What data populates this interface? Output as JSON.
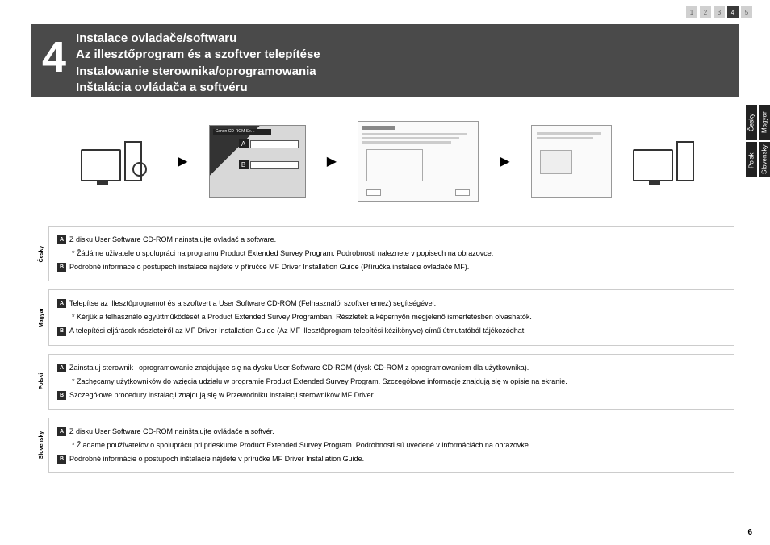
{
  "nav": {
    "steps": [
      "1",
      "2",
      "3",
      "4",
      "5"
    ],
    "active_index": 3
  },
  "header": {
    "step_number": "4",
    "titles": [
      "Instalace ovladače/softwaru",
      "Az illesztőprogram és a szoftver telepítése",
      "Instalowanie sterownika/oprogramowania",
      "Inštalácia ovládača a softvéru"
    ]
  },
  "side_tabs": {
    "col1": [
      "Česky",
      "Polski"
    ],
    "col2": [
      "Magyar",
      "Slovensky"
    ]
  },
  "diagram": {
    "markA": "A",
    "markB": "B",
    "cdrom_brand": "Canon   CD-ROM Se…"
  },
  "sections": [
    {
      "lang": "Česky",
      "lineA": "Z disku User Software CD-ROM nainstalujte ovladač a software.",
      "note": "* Žádáme uživatele o spolupráci na programu Product Extended Survey Program. Podrobnosti naleznete v popisech na obrazovce.",
      "lineB": "Podrobné informace o postupech instalace najdete v příručce MF Driver Installation Guide (Příručka instalace ovladače MF)."
    },
    {
      "lang": "Magyar",
      "lineA": "Telepítse az illesztőprogramot és a szoftvert a User Software CD-ROM (Felhasználói szoftverlemez) segítségével.",
      "note": "* Kérjük a felhasználó együttműködését a Product Extended Survey Programban. Részletek a képernyőn megjelenő ismertetésben olvashatók.",
      "lineB": "A telepítési eljárások részleteiről az MF Driver Installation Guide (Az MF illesztőprogram telepítési kézikönyve) című útmutatóból tájékozódhat."
    },
    {
      "lang": "Polski",
      "lineA": "Zainstaluj sterownik i oprogramowanie znajdujące się na dysku User Software CD-ROM (dysk CD-ROM z oprogramowaniem dla użytkownika).",
      "note": "* Zachęcamy użytkowników do wzięcia udziału w programie Product Extended Survey Program. Szczegółowe informacje znajdują się w opisie na ekranie.",
      "lineB": "Szczegółowe procedury instalacji znajdują się w Przewodniku instalacji sterowników MF Driver."
    },
    {
      "lang": "Slovensky",
      "lineA": "Z disku User Software CD-ROM nainštalujte ovládače a softvér.",
      "note": "* Žiadame používateľov o spoluprácu pri prieskume Product Extended Survey Program. Podrobnosti sú uvedené v informáciách na obrazovke.",
      "lineB": "Podrobné informácie o postupoch inštalácie nájdete v príručke MF Driver Installation Guide."
    }
  ],
  "page_number": "6",
  "colors": {
    "band": "#4a4a4a",
    "mark": "#2a2a2a"
  }
}
